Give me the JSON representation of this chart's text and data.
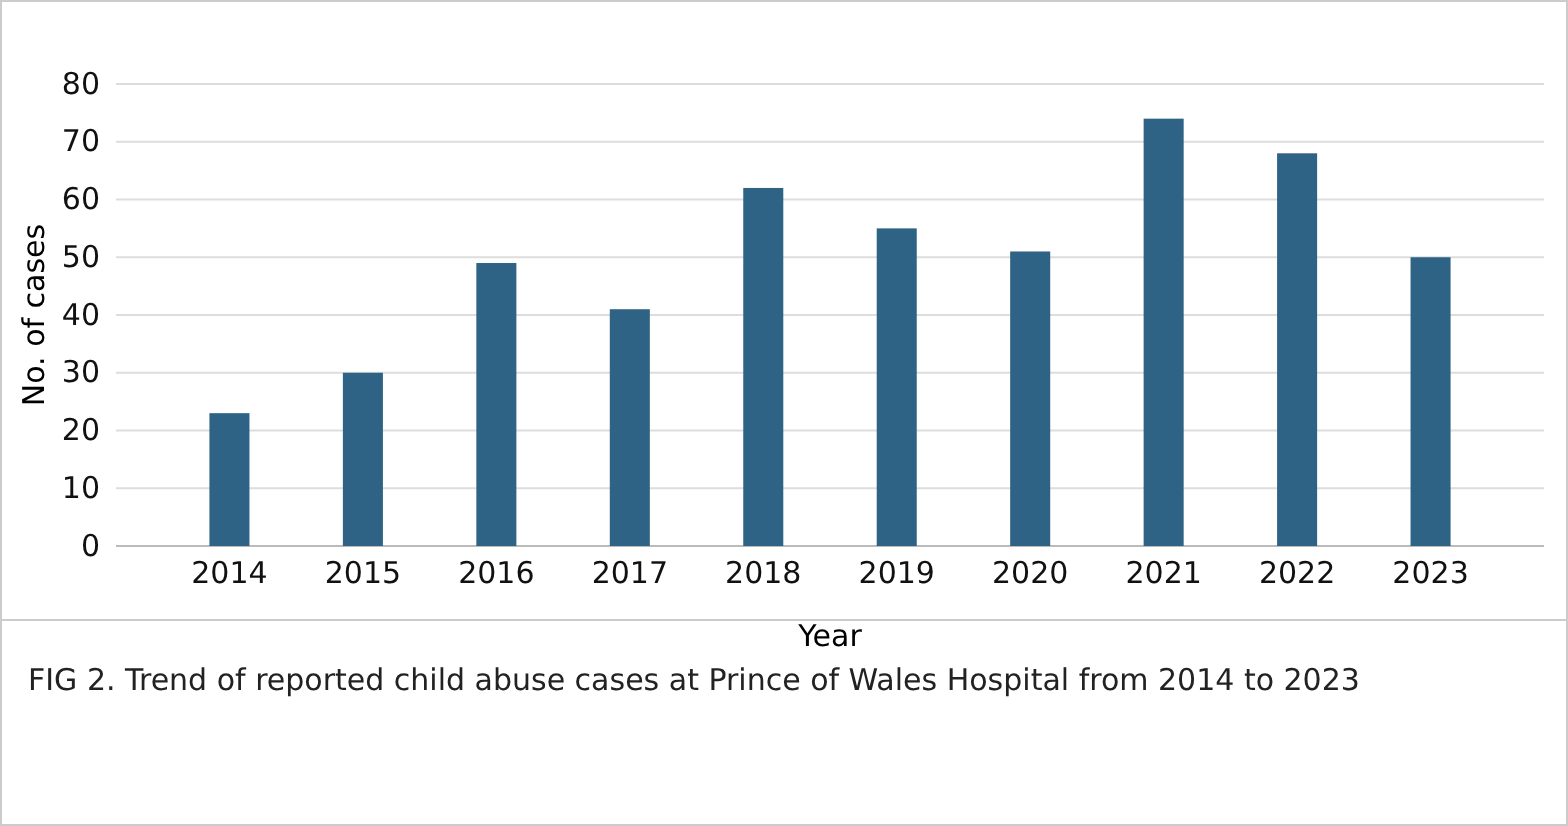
{
  "chart_data": {
    "type": "bar",
    "xlabel": "Year",
    "ylabel": "No. of cases",
    "categories": [
      "2014",
      "2015",
      "2016",
      "2017",
      "2018",
      "2019",
      "2020",
      "2021",
      "2022",
      "2023"
    ],
    "values": [
      23,
      30,
      49,
      41,
      62,
      55,
      51,
      74,
      68,
      50
    ],
    "color": "#2e6385",
    "ylim": [
      0,
      80
    ],
    "yticks": [
      0,
      10,
      20,
      30,
      40,
      50,
      60,
      70,
      80
    ],
    "grid": "y",
    "annotations": [
      "FIG 2. Trend of reported child abuse cases at Prince of Wales Hospital from 2014 to 2023"
    ]
  }
}
